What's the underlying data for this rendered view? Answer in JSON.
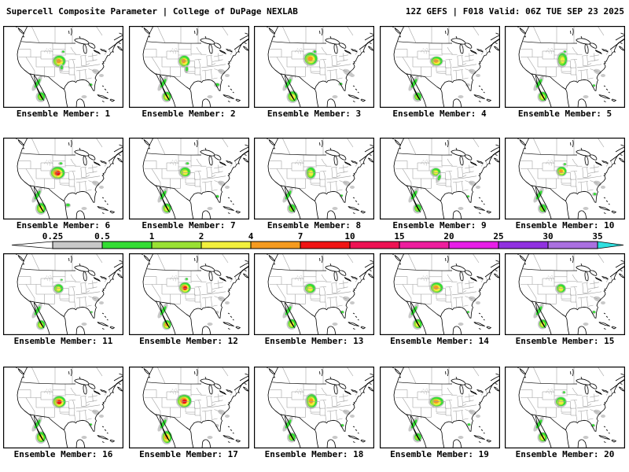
{
  "header": {
    "left": "Supercell Composite Parameter | College of DuPage NEXLAB",
    "right": "12Z GEFS | F018 Valid: 06Z TUE SEP 23 2025"
  },
  "colorbar": {
    "ticks": [
      "0.25",
      "0.5",
      "1",
      "2",
      "4",
      "7",
      "10",
      "15",
      "20",
      "25",
      "30",
      "35"
    ],
    "segment_colors": [
      "#c8c8c8",
      "#33dd33",
      "#99e033",
      "#f2ef3d",
      "#f59a1f",
      "#f01414",
      "#ee1253",
      "#ee1e9e",
      "#e81ee8",
      "#9030e0",
      "#aa70e0"
    ],
    "below_min_color": "#ffffff",
    "above_max_color": "#30e0e0"
  },
  "map_style": {
    "coast_color": "#000000",
    "state_line_color": "#9c9c9c",
    "background": "#ffffff",
    "blob_ramp": [
      "#c8c8c8",
      "#33dd33",
      "#99e033",
      "#f2ef3d",
      "#f59a1f",
      "#f01414"
    ]
  },
  "common_features": {
    "blobs": [
      [
        43,
        73,
        3.5,
        11,
        2,
        32
      ],
      [
        118,
        58,
        5,
        3,
        1,
        20
      ],
      [
        125,
        63,
        3,
        2,
        1,
        0
      ],
      [
        103,
        90,
        3.5,
        2,
        1,
        0
      ]
    ],
    "dots": [
      [
        57,
        31,
        6,
        3.5,
        12
      ]
    ]
  },
  "members": [
    {
      "label": "Ensemble Member: 1",
      "blobs": [
        [
          71,
          45,
          9,
          8,
          5,
          0
        ],
        [
          74,
          53,
          3,
          4.5,
          2,
          0
        ],
        [
          76,
          33,
          2.5,
          2,
          2,
          0
        ],
        [
          111,
          75,
          3,
          2.2,
          2,
          0
        ],
        [
          48,
          90,
          6.5,
          7,
          3,
          0
        ]
      ]
    },
    {
      "label": "Ensemble Member: 2",
      "blobs": [
        [
          70,
          45,
          8,
          8,
          5,
          0
        ],
        [
          73,
          55,
          3,
          5,
          2,
          0
        ],
        [
          112,
          75,
          4,
          3,
          2,
          0
        ],
        [
          48,
          90,
          6.5,
          7,
          4,
          0
        ]
      ]
    },
    {
      "label": "Ensemble Member: 3",
      "blobs": [
        [
          72,
          42,
          9.5,
          9,
          5,
          0
        ],
        [
          77,
          33,
          3,
          2.5,
          2,
          0
        ],
        [
          110,
          74,
          3,
          2.2,
          2,
          0
        ],
        [
          49,
          90,
          7.5,
          8,
          4,
          0
        ],
        [
          120,
          60,
          6,
          3,
          1,
          20
        ]
      ]
    },
    {
      "label": "Ensemble Member: 4",
      "blobs": [
        [
          72,
          45,
          8.5,
          6.5,
          5,
          0
        ],
        [
          112,
          75,
          3,
          2,
          1,
          0
        ],
        [
          48,
          90,
          6,
          6.5,
          3,
          0
        ]
      ]
    },
    {
      "label": "Ensemble Member: 5",
      "blobs": [
        [
          73,
          43,
          7,
          10,
          4,
          0
        ],
        [
          76,
          33,
          2.5,
          2,
          2,
          0
        ],
        [
          113,
          76,
          2.5,
          2,
          2,
          0
        ],
        [
          48,
          90,
          6.5,
          7,
          4,
          0
        ]
      ]
    },
    {
      "label": "Ensemble Member: 6",
      "blobs": [
        [
          69,
          45,
          10,
          8.5,
          6,
          0
        ],
        [
          73,
          33,
          3,
          2,
          2,
          0
        ],
        [
          82,
          86,
          4,
          3,
          2,
          0
        ],
        [
          48,
          90,
          7,
          8,
          4,
          0
        ]
      ]
    },
    {
      "label": "Ensemble Member: 7",
      "blobs": [
        [
          71,
          44,
          8,
          7,
          4,
          0
        ],
        [
          74,
          33,
          3,
          2,
          2,
          0
        ],
        [
          112,
          75,
          3,
          2.5,
          2,
          0
        ],
        [
          48,
          90,
          6.5,
          7,
          4,
          0
        ]
      ]
    },
    {
      "label": "Ensemble Member: 8",
      "blobs": [
        [
          72,
          45,
          7,
          8.5,
          4,
          0
        ],
        [
          111,
          74,
          2.5,
          2,
          2,
          0
        ],
        [
          48,
          90,
          6,
          6.5,
          3,
          0
        ]
      ]
    },
    {
      "label": "Ensemble Member: 9",
      "blobs": [
        [
          71,
          44,
          7,
          6,
          4,
          0
        ],
        [
          75,
          51,
          3,
          6,
          2,
          20
        ],
        [
          112,
          75,
          2.5,
          2,
          2,
          0
        ],
        [
          48,
          90,
          6,
          6.5,
          3,
          0
        ]
      ]
    },
    {
      "label": "Ensemble Member: 10",
      "blobs": [
        [
          72,
          43,
          7,
          6.5,
          5,
          0
        ],
        [
          76,
          34,
          2.5,
          2,
          2,
          0
        ],
        [
          114,
          72,
          3,
          2.5,
          2,
          0
        ],
        [
          48,
          90,
          6,
          6.5,
          3,
          0
        ]
      ]
    },
    {
      "label": "Ensemble Member: 11",
      "blobs": [
        [
          70,
          45,
          7,
          6.5,
          4,
          0
        ],
        [
          74,
          34,
          2,
          1.7,
          2,
          0
        ],
        [
          112,
          75,
          2,
          1.7,
          2,
          0
        ],
        [
          48,
          91,
          6,
          6.5,
          4,
          0
        ]
      ]
    },
    {
      "label": "Ensemble Member: 12",
      "blobs": [
        [
          71,
          44,
          8,
          7.5,
          6,
          0
        ],
        [
          73,
          33,
          2.5,
          2,
          2,
          0
        ],
        [
          112,
          75,
          2.5,
          2,
          1,
          0
        ],
        [
          48,
          91,
          6,
          6.5,
          5,
          0
        ]
      ]
    },
    {
      "label": "Ensemble Member: 13",
      "blobs": [
        [
          71,
          45,
          8,
          7,
          4,
          0
        ],
        [
          112,
          75,
          3,
          2.2,
          2,
          0
        ],
        [
          48,
          90,
          6.5,
          7,
          4,
          0
        ]
      ]
    },
    {
      "label": "Ensemble Member: 14",
      "blobs": [
        [
          72,
          44,
          9,
          7.5,
          5,
          0
        ],
        [
          112,
          75,
          2.5,
          2,
          2,
          0
        ],
        [
          48,
          90,
          6.5,
          7,
          4,
          0
        ]
      ]
    },
    {
      "label": "Ensemble Member: 15",
      "blobs": [
        [
          71,
          45,
          7,
          6.5,
          4,
          0
        ],
        [
          113,
          75,
          3,
          2.2,
          2,
          0
        ],
        [
          48,
          90,
          6,
          6.5,
          4,
          0
        ]
      ]
    },
    {
      "label": "Ensemble Member: 16",
      "blobs": [
        [
          71,
          45,
          9,
          8,
          6,
          0
        ],
        [
          111,
          74,
          2.5,
          2,
          2,
          0
        ],
        [
          48,
          90,
          7,
          8,
          4,
          0
        ]
      ]
    },
    {
      "label": "Ensemble Member: 17",
      "blobs": [
        [
          70,
          44,
          10,
          9,
          6,
          0
        ],
        [
          112,
          75,
          2.5,
          2,
          1,
          0
        ],
        [
          48,
          90,
          7,
          9,
          5,
          0
        ]
      ]
    },
    {
      "label": "Ensemble Member: 18",
      "blobs": [
        [
          73,
          44,
          8,
          10,
          5,
          0
        ],
        [
          112,
          75,
          3,
          2.2,
          2,
          0
        ],
        [
          48,
          90,
          6,
          6.5,
          3,
          0
        ]
      ]
    },
    {
      "label": "Ensemble Member: 19",
      "blobs": [
        [
          72,
          45,
          10,
          7,
          5,
          0
        ],
        [
          113,
          74,
          3,
          2.2,
          2,
          0
        ],
        [
          48,
          90,
          6,
          6.5,
          3,
          0
        ]
      ]
    },
    {
      "label": "Ensemble Member: 20",
      "blobs": [
        [
          71,
          45,
          8,
          7,
          4,
          0
        ],
        [
          75,
          33,
          2.5,
          2,
          2,
          0
        ],
        [
          112,
          75,
          3,
          2.2,
          2,
          0
        ],
        [
          48,
          90,
          6.5,
          7,
          4,
          0
        ]
      ]
    }
  ]
}
